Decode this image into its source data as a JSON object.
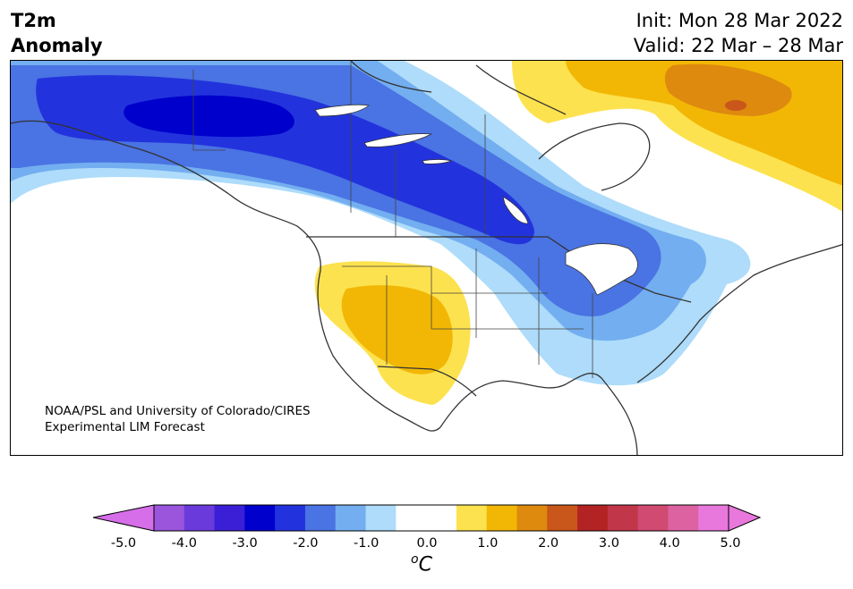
{
  "header": {
    "title_line1": "T2m",
    "title_line2": "Anomaly",
    "init": "Init: Mon 28 Mar 2022",
    "valid": "Valid: 22 Mar – 28 Mar"
  },
  "credit": {
    "line1": "NOAA/PSL and University of Colorado/CIRES",
    "line2": "Experimental LIM Forecast"
  },
  "colorbar": {
    "ticks": [
      "-5.0",
      "-4.0",
      "-3.0",
      "-2.0",
      "-1.0",
      "0.0",
      "1.0",
      "2.0",
      "3.0",
      "4.0",
      "5.0"
    ],
    "unit_o": "o",
    "unit_c": "C",
    "colors": [
      "#d56ee8",
      "#9a55dc",
      "#6a3adb",
      "#3a1fd6",
      "#0000cc",
      "#2233dd",
      "#4a73e3",
      "#73aef0",
      "#aedcfa",
      "#ffffff",
      "#ffffff",
      "#fde24f",
      "#f2b705",
      "#dd8a0f",
      "#c9561b",
      "#b32323",
      "#c2364a",
      "#d04a72",
      "#dd62a2",
      "#e878dc"
    ],
    "under_color": "#d56ee8",
    "over_color": "#e878dc"
  },
  "map": {
    "region": "North America",
    "variable": "2-meter temperature anomaly"
  }
}
